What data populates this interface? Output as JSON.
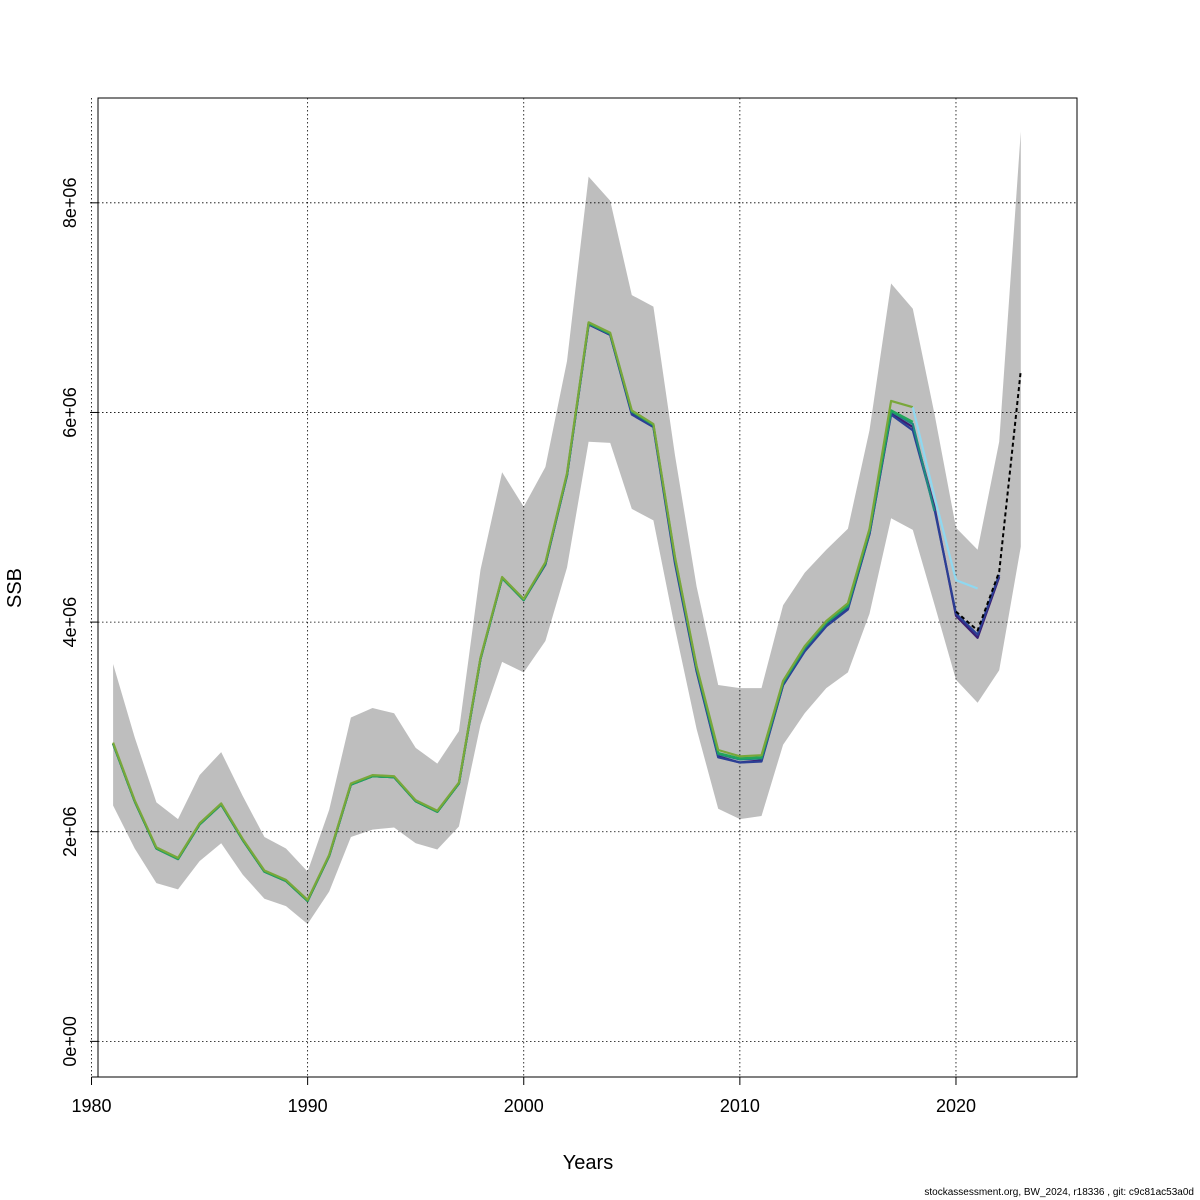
{
  "chart_data": {
    "type": "line",
    "title": "",
    "xlabel": "Years",
    "ylabel": "SSB",
    "xlim": [
      1980.3,
      2025.6
    ],
    "ylim": [
      -340000,
      9000000
    ],
    "x_ticks": [
      1980,
      1990,
      2000,
      2010,
      2020
    ],
    "x_tick_labels": [
      "1980",
      "1990",
      "2000",
      "2010",
      "2020"
    ],
    "y_ticks": [
      0,
      2000000,
      4000000,
      6000000,
      8000000
    ],
    "y_tick_labels": [
      "0e+00",
      "2e+06",
      "4e+06",
      "6e+06",
      "8e+06"
    ],
    "grid": true,
    "confidence_band": {
      "color": "#bebebe",
      "x": [
        1981,
        1982,
        1983,
        1984,
        1985,
        1986,
        1987,
        1988,
        1989,
        1990,
        1991,
        1992,
        1993,
        1994,
        1995,
        1996,
        1997,
        1998,
        1999,
        2000,
        2001,
        2002,
        2003,
        2004,
        2005,
        2006,
        2007,
        2008,
        2009,
        2010,
        2011,
        2012,
        2013,
        2014,
        2015,
        2016,
        2017,
        2018,
        2019,
        2020,
        2021,
        2022,
        2023
      ],
      "upper": [
        3600000,
        2900000,
        2280000,
        2120000,
        2540000,
        2760000,
        2340000,
        1950000,
        1840000,
        1620000,
        2210000,
        3090000,
        3180000,
        3130000,
        2800000,
        2650000,
        2960000,
        4500000,
        5430000,
        5100000,
        5480000,
        6490000,
        8250000,
        8020000,
        7120000,
        7010000,
        5590000,
        4340000,
        3400000,
        3370000,
        3370000,
        4160000,
        4470000,
        4690000,
        4890000,
        5830000,
        7230000,
        6990000,
        5990000,
        4900000,
        4690000,
        5720000,
        8680000
      ],
      "lower": [
        2250000,
        1840000,
        1510000,
        1450000,
        1720000,
        1890000,
        1590000,
        1360000,
        1290000,
        1120000,
        1430000,
        1950000,
        2020000,
        2040000,
        1890000,
        1830000,
        2050000,
        3020000,
        3620000,
        3520000,
        3820000,
        4520000,
        5720000,
        5710000,
        5080000,
        4970000,
        3940000,
        2980000,
        2220000,
        2120000,
        2150000,
        2830000,
        3130000,
        3370000,
        3520000,
        4080000,
        4990000,
        4880000,
        4170000,
        3450000,
        3230000,
        3540000,
        4720000
      ]
    },
    "series": [
      {
        "name": "purple",
        "color": "#3b1e73",
        "dashed": false,
        "x": [
          1981,
          1982,
          1983,
          1984,
          1985,
          1986,
          1987,
          1988,
          1989,
          1990,
          1991,
          1992,
          1993,
          1994,
          1995,
          1996,
          1997,
          1998,
          1999,
          2000,
          2001,
          2002,
          2003,
          2004,
          2005,
          2006,
          2007,
          2008,
          2009,
          2010,
          2011,
          2012,
          2013,
          2014,
          2015,
          2016,
          2017,
          2018,
          2019,
          2020,
          2021,
          2022
        ],
        "values": [
          2840000,
          2290000,
          1840000,
          1740000,
          2070000,
          2260000,
          1920000,
          1620000,
          1530000,
          1340000,
          1770000,
          2450000,
          2530000,
          2520000,
          2290000,
          2190000,
          2460000,
          3650000,
          4420000,
          4210000,
          4550000,
          5400000,
          6840000,
          6740000,
          6000000,
          5870000,
          4580000,
          3540000,
          2720000,
          2660000,
          2680000,
          3400000,
          3730000,
          3970000,
          4130000,
          4840000,
          5990000,
          5860000,
          5100000,
          4060000,
          3850000,
          4430000
        ]
      },
      {
        "name": "blue",
        "color": "#2b3f95",
        "dashed": false,
        "x": [
          1981,
          1982,
          1983,
          1984,
          1985,
          1986,
          1987,
          1988,
          1989,
          1990,
          1991,
          1992,
          1993,
          1994,
          1995,
          1996,
          1997,
          1998,
          1999,
          2000,
          2001,
          2002,
          2003,
          2004,
          2005,
          2006,
          2007,
          2008,
          2009,
          2010,
          2011,
          2012,
          2013,
          2014,
          2015,
          2016,
          2017,
          2018,
          2019,
          2020,
          2021,
          2022
        ],
        "values": [
          2840000,
          2290000,
          1840000,
          1740000,
          2070000,
          2260000,
          1920000,
          1620000,
          1530000,
          1340000,
          1770000,
          2450000,
          2530000,
          2520000,
          2290000,
          2190000,
          2460000,
          3650000,
          4420000,
          4210000,
          4550000,
          5400000,
          6840000,
          6740000,
          5980000,
          5860000,
          4560000,
          3530000,
          2710000,
          2660000,
          2670000,
          3400000,
          3720000,
          3960000,
          4120000,
          4840000,
          5980000,
          5830000,
          5080000,
          4080000,
          3880000,
          4450000
        ]
      },
      {
        "name": "teal",
        "color": "#1f8a80",
        "dashed": false,
        "x": [
          1981,
          1982,
          1983,
          1984,
          1985,
          1986,
          1987,
          1988,
          1989,
          1990,
          1991,
          1992,
          1993,
          1994,
          1995,
          1996,
          1997,
          1998,
          1999,
          2000,
          2001,
          2002,
          2003,
          2004,
          2005,
          2006,
          2007,
          2008,
          2009,
          2010,
          2011,
          2012,
          2013,
          2014,
          2015,
          2016,
          2017,
          2018,
          2019
        ],
        "values": [
          2840000,
          2290000,
          1840000,
          1740000,
          2070000,
          2260000,
          1920000,
          1620000,
          1530000,
          1340000,
          1770000,
          2450000,
          2530000,
          2520000,
          2290000,
          2190000,
          2460000,
          3650000,
          4420000,
          4210000,
          4560000,
          5400000,
          6850000,
          6750000,
          6010000,
          5880000,
          4600000,
          3560000,
          2740000,
          2690000,
          2700000,
          3420000,
          3750000,
          3990000,
          4150000,
          4860000,
          6010000,
          5890000,
          5060000
        ]
      },
      {
        "name": "green",
        "color": "#22a65a",
        "dashed": false,
        "x": [
          1981,
          1982,
          1983,
          1984,
          1985,
          1986,
          1987,
          1988,
          1989,
          1990,
          1991,
          1992,
          1993,
          1994,
          1995,
          1996,
          1997,
          1998,
          1999,
          2000,
          2001,
          2002,
          2003,
          2004,
          2005,
          2006,
          2007,
          2008,
          2009,
          2010,
          2011,
          2012,
          2013,
          2014,
          2015,
          2016,
          2017,
          2018
        ],
        "values": [
          2840000,
          2290000,
          1840000,
          1740000,
          2070000,
          2260000,
          1920000,
          1620000,
          1530000,
          1340000,
          1770000,
          2450000,
          2530000,
          2520000,
          2290000,
          2190000,
          2460000,
          3650000,
          4420000,
          4210000,
          4560000,
          5410000,
          6850000,
          6750000,
          6010000,
          5880000,
          4610000,
          3570000,
          2750000,
          2700000,
          2710000,
          3430000,
          3760000,
          4000000,
          4160000,
          4870000,
          6020000,
          5910000
        ]
      },
      {
        "name": "olive",
        "color": "#7aa73a",
        "dashed": false,
        "x": [
          1981,
          1982,
          1983,
          1984,
          1985,
          1986,
          1987,
          1988,
          1989,
          1990,
          1991,
          1992,
          1993,
          1994,
          1995,
          1996,
          1997,
          1998,
          1999,
          2000,
          2001,
          2002,
          2003,
          2004,
          2005,
          2006,
          2007,
          2008,
          2009,
          2010,
          2011,
          2012,
          2013,
          2014,
          2015,
          2016,
          2017,
          2018
        ],
        "values": [
          2850000,
          2300000,
          1850000,
          1750000,
          2080000,
          2270000,
          1930000,
          1630000,
          1540000,
          1350000,
          1780000,
          2460000,
          2540000,
          2530000,
          2300000,
          2200000,
          2470000,
          3660000,
          4430000,
          4220000,
          4570000,
          5420000,
          6860000,
          6760000,
          6020000,
          5890000,
          4620000,
          3580000,
          2780000,
          2720000,
          2730000,
          3440000,
          3770000,
          4010000,
          4180000,
          4890000,
          6110000,
          6050000
        ]
      },
      {
        "name": "lightblue",
        "color": "#8fd8f0",
        "dashed": false,
        "x": [
          2018,
          2019,
          2020,
          2021
        ],
        "values": [
          6050000,
          5200000,
          4400000,
          4320000
        ]
      },
      {
        "name": "black-dashed",
        "color": "#000000",
        "dashed": true,
        "x": [
          2020,
          2021,
          2022,
          2023
        ],
        "values": [
          4100000,
          3920000,
          4480000,
          6400000
        ]
      }
    ]
  },
  "footer": {
    "text": "stockassessment.org, BW_2024, r18336 , git: c9c81ac53a0d"
  }
}
